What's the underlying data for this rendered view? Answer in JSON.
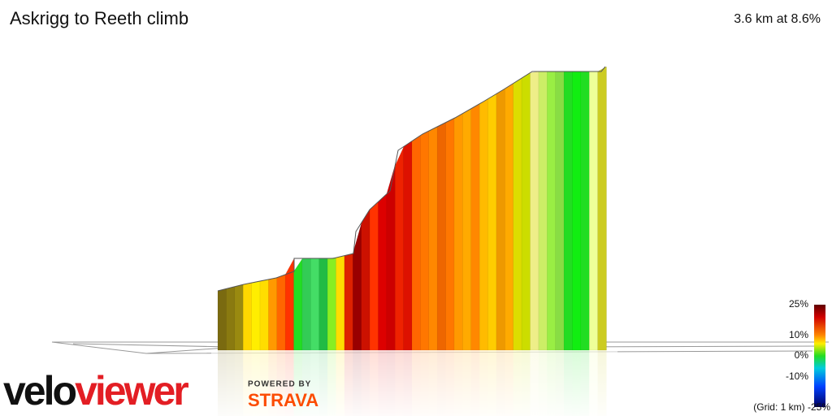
{
  "header": {
    "title": "Askrigg to Reeth climb",
    "summary": "3.6 km at 8.6%"
  },
  "legend": {
    "labels": [
      "25%",
      "10%",
      "0%",
      "-10%",
      "-25%"
    ],
    "grid_note": "(Grid: 1 km)"
  },
  "branding": {
    "logo": "veloviewer",
    "powered_by": "POWERED BY",
    "strava": "STRAVA"
  }
}
